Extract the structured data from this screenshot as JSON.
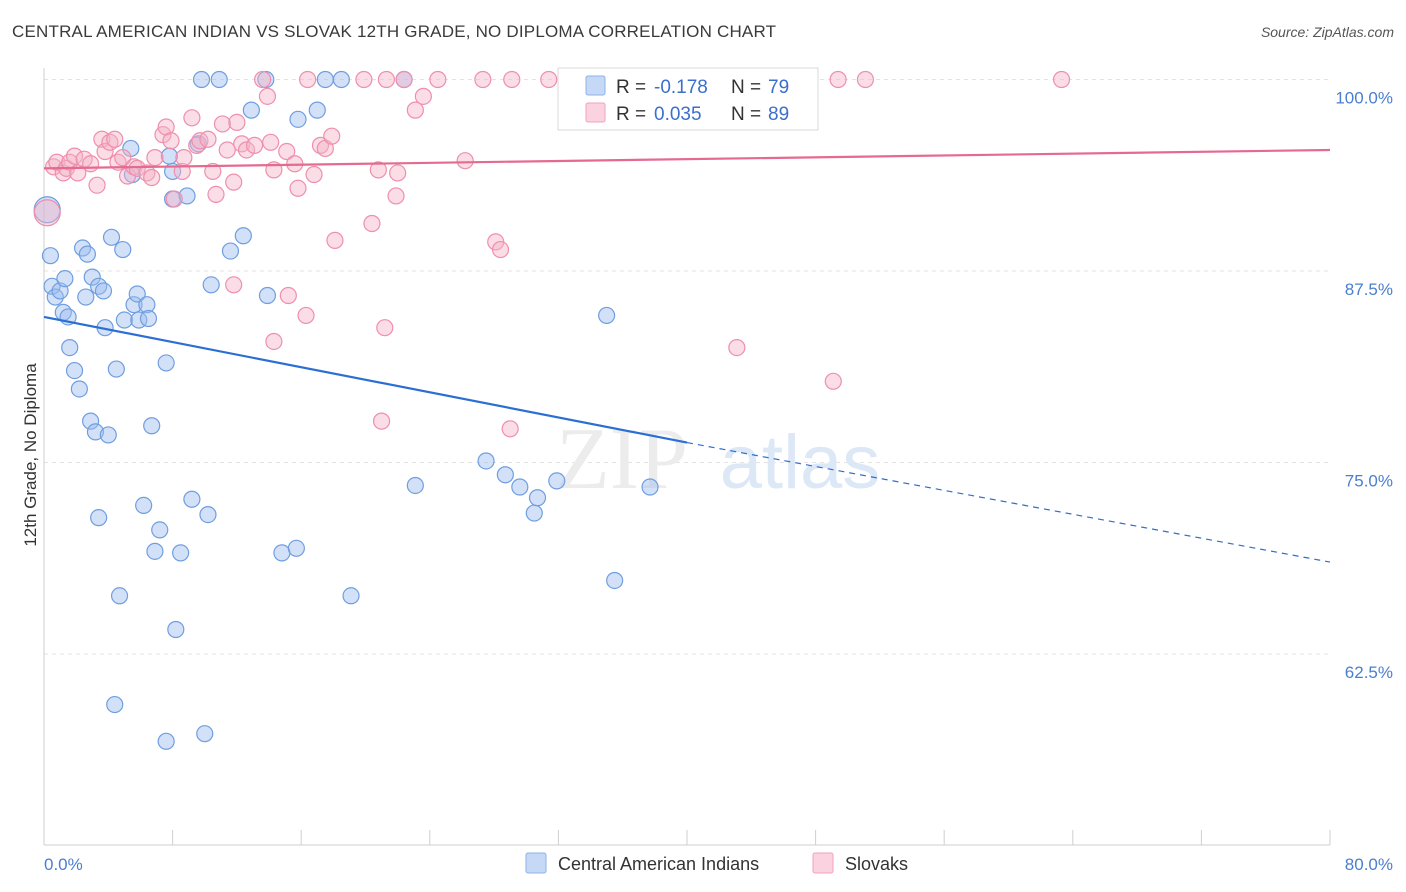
{
  "title": "CENTRAL AMERICAN INDIAN VS SLOVAK 12TH GRADE, NO DIPLOMA CORRELATION CHART",
  "source": "Source: ZipAtlas.com",
  "watermark": {
    "zip": "ZIP",
    "atlas": "atlas"
  },
  "stats": {
    "r_label": "R =",
    "n_label": "N =",
    "rows": [
      {
        "r": "-0.178",
        "n": "79",
        "color": "#9bbdf0"
      },
      {
        "r": "0.035",
        "n": "89",
        "color": "#f5b3c8"
      }
    ]
  },
  "legend": {
    "items": [
      {
        "label": "Central American Indians",
        "color": "#9bbdf0"
      },
      {
        "label": "Slovaks",
        "color": "#f5b3c8"
      }
    ]
  },
  "chart_data": {
    "type": "scatter",
    "ylabel": "12th Grade, No Diploma",
    "xlabel": "",
    "xlim": [
      0,
      80
    ],
    "ylim": [
      50,
      100
    ],
    "x_tick_labels": {
      "left": "0.0%",
      "right": "80.0%"
    },
    "y_ticks": [
      {
        "value": 100,
        "label": "100.0%"
      },
      {
        "value": 87.5,
        "label": "87.5%"
      },
      {
        "value": 75,
        "label": "75.0%"
      },
      {
        "value": 62.5,
        "label": "62.5%"
      }
    ],
    "grid": true,
    "legend_position": "bottom-center",
    "series": [
      {
        "name": "Central American Indians",
        "color": "#9bbdf0",
        "edge": "#6f9ee0",
        "trend": {
          "x0": 0,
          "y0": 84.5,
          "x1": 40,
          "y1": 76.3,
          "dash_to_x": 80,
          "dash_to_y": 68.5,
          "color": "#2b6fd4"
        },
        "points": [
          [
            0.2,
            91.5
          ],
          [
            0.4,
            88.5
          ],
          [
            0.5,
            86.5
          ],
          [
            0.7,
            85.8
          ],
          [
            1.0,
            86.2
          ],
          [
            1.2,
            84.8
          ],
          [
            1.3,
            87.0
          ],
          [
            1.5,
            84.5
          ],
          [
            1.6,
            82.5
          ],
          [
            1.9,
            81.0
          ],
          [
            2.2,
            79.8
          ],
          [
            2.4,
            89.0
          ],
          [
            2.6,
            85.8
          ],
          [
            2.7,
            88.6
          ],
          [
            2.9,
            77.7
          ],
          [
            3.0,
            87.1
          ],
          [
            3.2,
            77.0
          ],
          [
            3.4,
            71.4
          ],
          [
            3.4,
            86.5
          ],
          [
            3.7,
            86.2
          ],
          [
            3.8,
            83.8
          ],
          [
            4.0,
            76.8
          ],
          [
            4.2,
            89.7
          ],
          [
            4.5,
            81.1
          ],
          [
            4.7,
            66.3
          ],
          [
            4.9,
            88.9
          ],
          [
            5.0,
            84.3
          ],
          [
            5.4,
            95.5
          ],
          [
            5.5,
            93.8
          ],
          [
            5.6,
            85.3
          ],
          [
            5.8,
            86.0
          ],
          [
            5.9,
            84.3
          ],
          [
            6.2,
            72.2
          ],
          [
            6.4,
            85.3
          ],
          [
            6.5,
            84.4
          ],
          [
            6.7,
            77.4
          ],
          [
            6.9,
            69.2
          ],
          [
            7.2,
            70.6
          ],
          [
            7.6,
            81.5
          ],
          [
            7.8,
            95.0
          ],
          [
            8.0,
            94.0
          ],
          [
            8.0,
            92.2
          ],
          [
            8.2,
            64.1
          ],
          [
            8.5,
            69.1
          ],
          [
            8.9,
            92.4
          ],
          [
            9.2,
            72.6
          ],
          [
            9.6,
            95.8
          ],
          [
            9.8,
            100.0
          ],
          [
            10.2,
            71.6
          ],
          [
            10.4,
            86.6
          ],
          [
            10.9,
            100.0
          ],
          [
            11.6,
            88.8
          ],
          [
            12.4,
            89.8
          ],
          [
            12.9,
            98.0
          ],
          [
            13.8,
            100.0
          ],
          [
            13.9,
            85.9
          ],
          [
            14.8,
            69.1
          ],
          [
            15.7,
            69.4
          ],
          [
            15.8,
            97.4
          ],
          [
            17.0,
            98.0
          ],
          [
            17.5,
            100.0
          ],
          [
            18.5,
            100.0
          ],
          [
            19.1,
            66.3
          ],
          [
            22.4,
            100.0
          ],
          [
            23.1,
            73.5
          ],
          [
            27.5,
            75.1
          ],
          [
            28.7,
            74.2
          ],
          [
            29.6,
            73.4
          ],
          [
            30.5,
            71.7
          ],
          [
            30.7,
            72.7
          ],
          [
            31.9,
            73.8
          ],
          [
            35.0,
            84.6
          ],
          [
            35.5,
            67.3
          ],
          [
            37.7,
            73.4
          ],
          [
            4.4,
            59.2
          ],
          [
            7.6,
            56.8
          ],
          [
            10.0,
            57.3
          ]
        ]
      },
      {
        "name": "Slovaks",
        "color": "#f5b3c8",
        "edge": "#ee8fad",
        "trend": {
          "x0": 0,
          "y0": 94.2,
          "x1": 80,
          "y1": 95.4,
          "color": "#e56a90"
        },
        "points": [
          [
            0.2,
            91.3
          ],
          [
            0.6,
            94.3
          ],
          [
            0.8,
            94.6
          ],
          [
            1.2,
            93.9
          ],
          [
            1.4,
            94.2
          ],
          [
            1.6,
            94.6
          ],
          [
            1.9,
            95.0
          ],
          [
            2.1,
            93.9
          ],
          [
            2.5,
            94.8
          ],
          [
            2.9,
            94.5
          ],
          [
            3.3,
            93.1
          ],
          [
            3.6,
            96.1
          ],
          [
            3.8,
            95.3
          ],
          [
            4.1,
            95.9
          ],
          [
            4.4,
            96.1
          ],
          [
            4.6,
            94.6
          ],
          [
            4.9,
            94.9
          ],
          [
            5.2,
            93.7
          ],
          [
            5.6,
            94.3
          ],
          [
            5.8,
            94.2
          ],
          [
            6.4,
            93.9
          ],
          [
            6.7,
            93.6
          ],
          [
            6.9,
            94.9
          ],
          [
            7.4,
            96.4
          ],
          [
            7.6,
            96.9
          ],
          [
            7.9,
            96.0
          ],
          [
            8.1,
            92.2
          ],
          [
            8.6,
            94.0
          ],
          [
            8.7,
            94.9
          ],
          [
            9.2,
            97.5
          ],
          [
            9.5,
            95.7
          ],
          [
            9.7,
            96.0
          ],
          [
            10.2,
            96.1
          ],
          [
            10.5,
            94.0
          ],
          [
            10.7,
            92.5
          ],
          [
            11.1,
            97.1
          ],
          [
            11.4,
            95.4
          ],
          [
            11.8,
            93.3
          ],
          [
            12.0,
            97.2
          ],
          [
            12.3,
            95.8
          ],
          [
            12.6,
            95.4
          ],
          [
            13.1,
            95.7
          ],
          [
            13.6,
            100.0
          ],
          [
            13.9,
            98.9
          ],
          [
            14.1,
            95.9
          ],
          [
            14.3,
            94.1
          ],
          [
            15.1,
            95.3
          ],
          [
            15.6,
            94.5
          ],
          [
            15.8,
            92.9
          ],
          [
            16.4,
            100.0
          ],
          [
            16.8,
            93.8
          ],
          [
            17.2,
            95.7
          ],
          [
            17.5,
            95.5
          ],
          [
            17.9,
            96.3
          ],
          [
            18.1,
            89.5
          ],
          [
            19.9,
            100.0
          ],
          [
            20.4,
            90.6
          ],
          [
            20.8,
            94.1
          ],
          [
            21.3,
            100.0
          ],
          [
            21.9,
            92.4
          ],
          [
            22.4,
            100.0
          ],
          [
            23.1,
            98.0
          ],
          [
            23.6,
            98.9
          ],
          [
            24.5,
            100.0
          ],
          [
            26.2,
            94.7
          ],
          [
            27.3,
            100.0
          ],
          [
            28.1,
            89.4
          ],
          [
            28.4,
            88.9
          ],
          [
            29.1,
            100.0
          ],
          [
            31.4,
            100.0
          ],
          [
            33.5,
            100.0
          ],
          [
            35.4,
            100.0
          ],
          [
            36.6,
            100.0
          ],
          [
            37.9,
            100.0
          ],
          [
            40.3,
            100.0
          ],
          [
            42.8,
            100.0
          ],
          [
            49.4,
            100.0
          ],
          [
            51.1,
            100.0
          ],
          [
            63.3,
            100.0
          ],
          [
            11.8,
            86.6
          ],
          [
            15.2,
            85.9
          ],
          [
            16.3,
            84.6
          ],
          [
            14.3,
            82.9
          ],
          [
            21.2,
            83.8
          ],
          [
            21.0,
            77.7
          ],
          [
            29.0,
            77.2
          ],
          [
            43.1,
            82.5
          ],
          [
            49.1,
            80.3
          ],
          [
            22.0,
            93.9
          ]
        ]
      }
    ]
  }
}
